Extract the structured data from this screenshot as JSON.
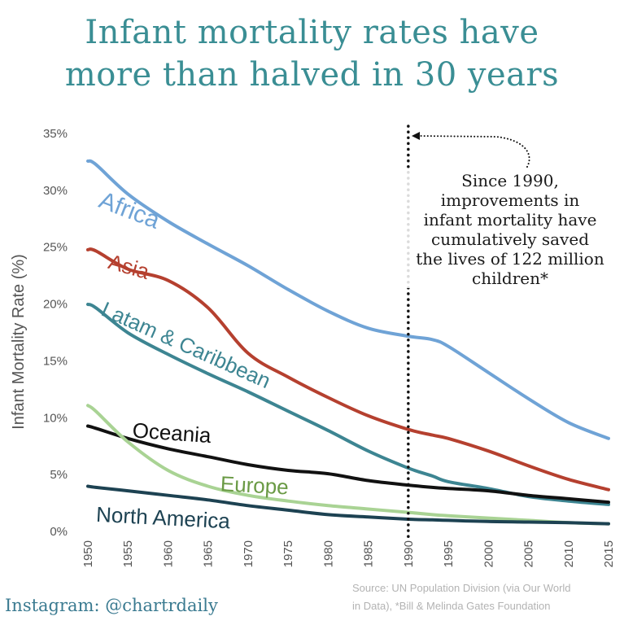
{
  "title_lines": [
    "Infant mortality rates have",
    "more than halved in 30 years"
  ],
  "annotation_lines": [
    "Since 1990,",
    "improvements in",
    "infant mortality have",
    "cumulatively saved",
    "the lives of 122 million",
    "children*"
  ],
  "footer": {
    "instagram": "Instagram: @chartrdaily",
    "source_line1": "Source: UN Population Division (via Our World",
    "source_line2": "in Data), *Bill & Melinda Gates Foundation"
  },
  "colors": {
    "title": "#3a8e94",
    "africa": "#6fa3d6",
    "asia": "#b5402f",
    "latam": "#3d8592",
    "oceania": "#111111",
    "europe": "#a9d394",
    "europe_label": "#6a9a45",
    "north_america": "#1d4252",
    "axis_text": "#555555"
  },
  "chart_data": {
    "type": "line",
    "ylabel": "Infant Mortality Rate (%)",
    "xlabel": "",
    "ylim": [
      0,
      35
    ],
    "xlim": [
      1950,
      2015
    ],
    "yticks": [
      "0%",
      "5%",
      "10%",
      "15%",
      "20%",
      "25%",
      "30%",
      "35%"
    ],
    "xticks": [
      "1950",
      "1955",
      "1960",
      "1965",
      "1970",
      "1975",
      "1980",
      "1985",
      "1990",
      "1995",
      "2000",
      "2005",
      "2010",
      "2015"
    ],
    "x": [
      1950,
      1951,
      1955,
      1960,
      1965,
      1970,
      1975,
      1980,
      1985,
      1990,
      1993,
      1995,
      2000,
      2005,
      2010,
      2015
    ],
    "marker_year": 1990,
    "grid": false,
    "series": [
      {
        "name": "Africa",
        "key": "africa",
        "values": [
          32.5,
          32.2,
          29.6,
          27.2,
          25.2,
          23.3,
          21.2,
          19.3,
          17.8,
          17.1,
          16.8,
          16.2,
          13.9,
          11.6,
          9.5,
          8.1
        ]
      },
      {
        "name": "Asia",
        "key": "asia",
        "values": [
          24.7,
          24.6,
          23.0,
          22.0,
          19.6,
          15.6,
          13.5,
          11.7,
          10.1,
          8.9,
          8.4,
          8.1,
          7.0,
          5.7,
          4.5,
          3.6
        ]
      },
      {
        "name": "Latam & Caribbean",
        "key": "latam",
        "values": [
          19.9,
          19.6,
          17.4,
          15.5,
          13.8,
          12.2,
          10.5,
          8.8,
          7.0,
          5.5,
          4.8,
          4.3,
          3.7,
          3.0,
          2.6,
          2.3
        ]
      },
      {
        "name": "Oceania",
        "key": "oceania",
        "values": [
          9.2,
          9.0,
          8.1,
          7.2,
          6.5,
          5.8,
          5.3,
          5.0,
          4.4,
          4.0,
          3.8,
          3.7,
          3.5,
          3.1,
          2.8,
          2.5
        ]
      },
      {
        "name": "Europe",
        "key": "europe",
        "values": [
          11.0,
          10.5,
          7.8,
          5.3,
          3.9,
          3.1,
          2.6,
          2.2,
          1.9,
          1.6,
          1.4,
          1.3,
          1.1,
          0.9,
          0.7,
          0.6
        ]
      },
      {
        "name": "North America",
        "key": "north_america",
        "values": [
          3.9,
          3.8,
          3.5,
          3.1,
          2.7,
          2.2,
          1.8,
          1.4,
          1.2,
          1.0,
          0.95,
          0.9,
          0.8,
          0.75,
          0.7,
          0.6
        ]
      }
    ],
    "labels": [
      {
        "series": "africa",
        "x": 1951.2,
        "y": 28.5,
        "rotate": 21,
        "size": 30
      },
      {
        "series": "asia",
        "x": 1952.4,
        "y": 23.1,
        "rotate": 16,
        "size": 26
      },
      {
        "series": "latam",
        "x": 1951.5,
        "y": 19.0,
        "rotate": 24,
        "size": 26
      },
      {
        "series": "oceania",
        "x": 1955.5,
        "y": 8.2,
        "rotate": 4,
        "size": 26
      },
      {
        "series": "europe",
        "x": 1966.5,
        "y": 3.5,
        "rotate": 3,
        "size": 26,
        "colorKey": "europe_label"
      },
      {
        "series": "north_america",
        "x": 1951.0,
        "y": 0.8,
        "rotate": 3,
        "size": 26
      }
    ]
  }
}
